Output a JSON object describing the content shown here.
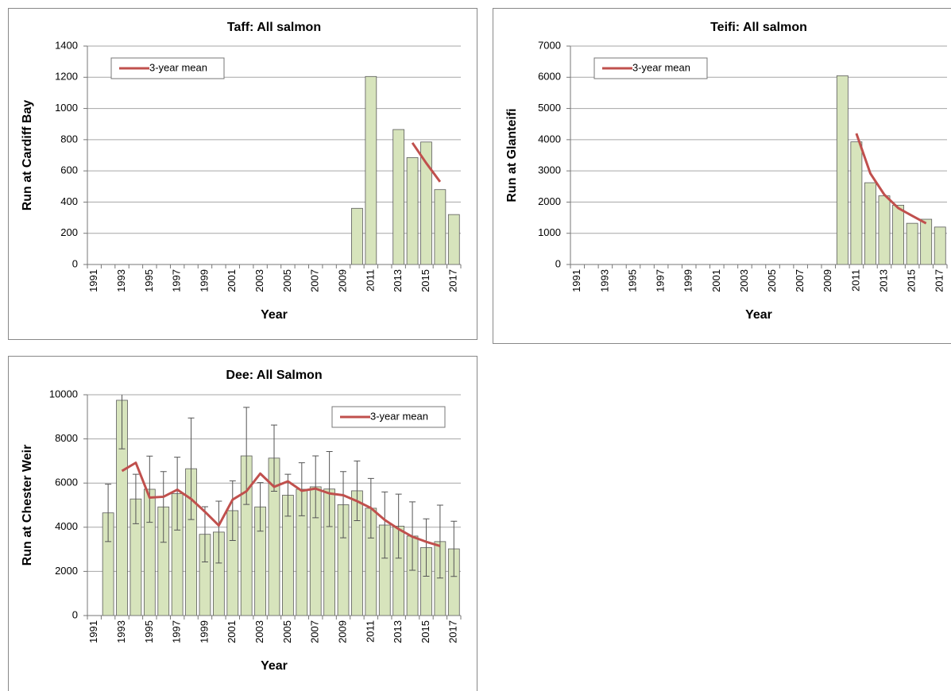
{
  "chart_data": [
    {
      "type": "bar",
      "title": "Taff: All salmon",
      "xlabel": "Year",
      "ylabel": "Run at Cardiff Bay",
      "categories": [
        1991,
        null,
        1993,
        null,
        1995,
        null,
        1997,
        null,
        1999,
        null,
        2001,
        null,
        2003,
        null,
        2005,
        null,
        2007,
        null,
        2009,
        null,
        2011,
        null,
        2013,
        null,
        2015,
        null,
        2017
      ],
      "values": [
        null,
        null,
        null,
        null,
        null,
        null,
        null,
        null,
        null,
        null,
        null,
        null,
        null,
        null,
        null,
        null,
        null,
        null,
        null,
        360,
        1205,
        null,
        865,
        685,
        785,
        480,
        320
      ],
      "color": "#d7e4bc",
      "line": {
        "name": "3-year mean",
        "color": "#c0504d",
        "values": [
          null,
          null,
          null,
          null,
          null,
          null,
          null,
          null,
          null,
          null,
          null,
          null,
          null,
          null,
          null,
          null,
          null,
          null,
          null,
          null,
          null,
          null,
          null,
          780,
          650,
          530,
          null
        ]
      },
      "ylim": [
        0,
        1400
      ],
      "yticks": [
        0,
        200,
        400,
        600,
        800,
        1000,
        1200,
        1400
      ],
      "grid": true,
      "legend": "upper left"
    },
    {
      "type": "bar",
      "title": "Teifi: All salmon",
      "xlabel": "Year",
      "ylabel": "Run at Glanteifi",
      "categories": [
        1991,
        null,
        1993,
        null,
        1995,
        null,
        1997,
        null,
        1999,
        null,
        2001,
        null,
        2003,
        null,
        2005,
        null,
        2007,
        null,
        2009,
        null,
        2011,
        null,
        2013,
        null,
        2015,
        null,
        2017
      ],
      "values": [
        null,
        null,
        null,
        null,
        null,
        null,
        null,
        null,
        null,
        null,
        null,
        null,
        null,
        null,
        null,
        null,
        null,
        null,
        null,
        6050,
        3930,
        2620,
        2200,
        1900,
        1320,
        1450,
        1200
      ],
      "color": "#d7e4bc",
      "line": {
        "name": "3-year mean",
        "color": "#c0504d",
        "values": [
          null,
          null,
          null,
          null,
          null,
          null,
          null,
          null,
          null,
          null,
          null,
          null,
          null,
          null,
          null,
          null,
          null,
          null,
          null,
          null,
          4200,
          2920,
          2240,
          1810,
          1560,
          1320,
          null
        ]
      },
      "ylim": [
        0,
        7000
      ],
      "yticks": [
        0,
        1000,
        2000,
        3000,
        4000,
        5000,
        6000,
        7000
      ],
      "grid": true,
      "legend": "upper left"
    },
    {
      "type": "bar",
      "title": "Dee: All Salmon",
      "xlabel": "Year",
      "ylabel": "Run at Chester Weir",
      "categories": [
        1991,
        null,
        1993,
        null,
        1995,
        null,
        1997,
        null,
        1999,
        null,
        2001,
        null,
        2003,
        null,
        2005,
        null,
        2007,
        null,
        2009,
        null,
        2011,
        null,
        2013,
        null,
        2015,
        null,
        2017
      ],
      "values": [
        null,
        4650,
        9750,
        5280,
        5720,
        4920,
        5520,
        6650,
        3680,
        3780,
        4750,
        7230,
        4920,
        7130,
        5450,
        5720,
        5830,
        5730,
        5020,
        5650,
        4860,
        4100,
        4050,
        3600,
        3080,
        3350,
        3020
      ],
      "errors": [
        null,
        1300,
        2200,
        1120,
        1500,
        1600,
        1650,
        2300,
        1250,
        1400,
        1350,
        2200,
        1100,
        1500,
        950,
        1200,
        1400,
        1700,
        1500,
        1350,
        1350,
        1500,
        1450,
        1550,
        1300,
        1650,
        1250
      ],
      "color": "#d7e4bc",
      "line": {
        "name": "3-year mean",
        "color": "#c0504d",
        "values": [
          null,
          null,
          6550,
          6920,
          5340,
          5380,
          5700,
          5280,
          4700,
          4080,
          5250,
          5630,
          6430,
          5830,
          6080,
          5650,
          5750,
          5530,
          5450,
          5180,
          4870,
          4330,
          3920,
          3570,
          3340,
          3150,
          null
        ]
      },
      "ylim": [
        0,
        10000
      ],
      "yticks": [
        0,
        2000,
        4000,
        6000,
        8000,
        10000
      ],
      "grid": true,
      "legend": "upper right"
    }
  ]
}
